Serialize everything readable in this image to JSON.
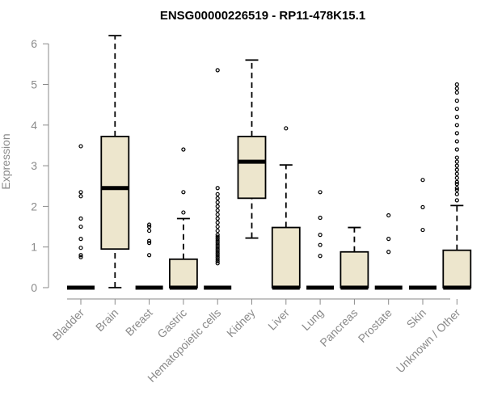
{
  "chart_data": {
    "type": "box",
    "title": "ENSG00000226519 - RP11-478K15.1",
    "ylabel": "Expression",
    "xlabel": "",
    "ylim": [
      0,
      6.2
    ],
    "yticks": [
      0,
      1,
      2,
      3,
      4,
      5,
      6
    ],
    "box_fill": "#ede6cd",
    "categories": [
      "Bladder",
      "Brain",
      "Breast",
      "Gastric",
      "Hematopoietic cells",
      "Kidney",
      "Liver",
      "Lung",
      "Pancreas",
      "Prostate",
      "Skin",
      "Unknown / Other"
    ],
    "boxes": [
      {
        "q1": 0,
        "median": 0,
        "q3": 0,
        "lo": 0,
        "hi": 0,
        "outliers": [
          0.75,
          0.8,
          0.98,
          1.2,
          1.5,
          1.7,
          2.25,
          2.35,
          3.48
        ]
      },
      {
        "q1": 0.95,
        "median": 2.45,
        "q3": 3.72,
        "lo": 0,
        "hi": 6.2,
        "outliers": []
      },
      {
        "q1": 0,
        "median": 0,
        "q3": 0,
        "lo": 0,
        "hi": 0,
        "outliers": [
          0.8,
          1.1,
          1.15,
          1.4,
          1.5,
          1.55
        ]
      },
      {
        "q1": 0,
        "median": 0,
        "q3": 0.7,
        "lo": 0,
        "hi": 1.7,
        "outliers": [
          1.85,
          2.35,
          3.4
        ]
      },
      {
        "q1": 0,
        "median": 0,
        "q3": 0,
        "lo": 0,
        "hi": 0,
        "outliers": [
          0.6,
          0.65,
          0.7,
          0.75,
          0.8,
          0.85,
          0.9,
          0.95,
          1.0,
          1.05,
          1.1,
          1.15,
          1.2,
          1.25,
          1.3,
          1.4,
          1.5,
          1.6,
          1.7,
          1.8,
          1.9,
          2.0,
          2.1,
          2.2,
          2.3,
          2.45,
          5.35
        ]
      },
      {
        "q1": 2.2,
        "median": 3.1,
        "q3": 3.72,
        "lo": 1.22,
        "hi": 5.6,
        "outliers": []
      },
      {
        "q1": 0,
        "median": 0,
        "q3": 1.48,
        "lo": 0,
        "hi": 3.02,
        "outliers": [
          3.92
        ]
      },
      {
        "q1": 0,
        "median": 0,
        "q3": 0,
        "lo": 0,
        "hi": 0,
        "outliers": [
          0.78,
          1.05,
          1.3,
          1.72,
          2.35
        ]
      },
      {
        "q1": 0,
        "median": 0,
        "q3": 0.88,
        "lo": 0,
        "hi": 1.48,
        "outliers": []
      },
      {
        "q1": 0,
        "median": 0,
        "q3": 0,
        "lo": 0,
        "hi": 0,
        "outliers": [
          0.88,
          1.2,
          1.78
        ]
      },
      {
        "q1": 0,
        "median": 0,
        "q3": 0,
        "lo": 0,
        "hi": 0,
        "outliers": [
          1.42,
          1.98,
          2.65
        ]
      },
      {
        "q1": 0,
        "median": 0,
        "q3": 0.92,
        "lo": 0,
        "hi": 2.02,
        "outliers": [
          2.15,
          2.3,
          2.4,
          2.45,
          2.55,
          2.6,
          2.7,
          2.8,
          2.9,
          3.0,
          3.1,
          3.2,
          3.4,
          3.6,
          3.8,
          4.0,
          4.2,
          4.4,
          4.6,
          4.8,
          4.9,
          5.0
        ]
      }
    ]
  }
}
